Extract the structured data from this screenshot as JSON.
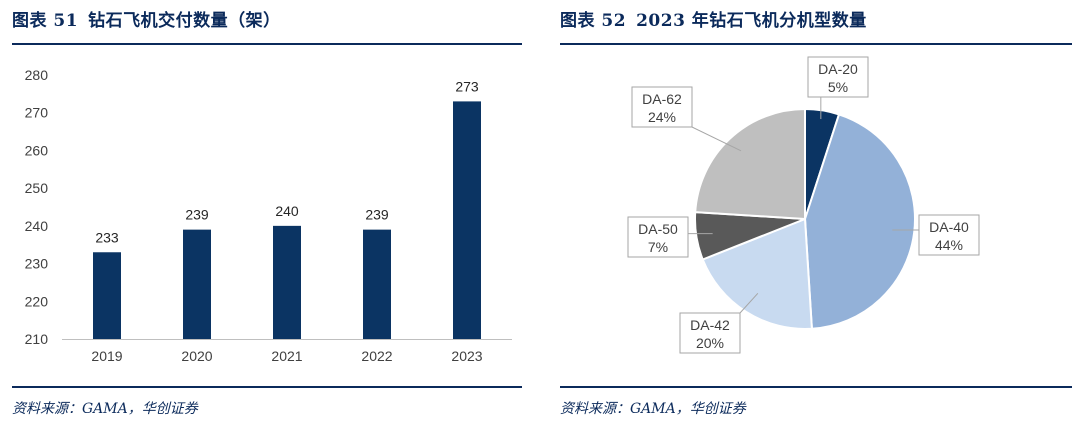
{
  "charts": {
    "left": {
      "fig_label": "图表 51",
      "title": "钻石飞机交付数量（架）",
      "source": "资料来源：GAMA，华创证券"
    },
    "right": {
      "fig_label": "图表 52",
      "title": "2023 年钻石飞机分机型数量",
      "source": "资料来源：GAMA，华创证券"
    }
  },
  "colors": {
    "title": "#0b2a5b",
    "bar": "#0b3463",
    "axis_text": "#404040",
    "pie": [
      "#0b3463",
      "#93b1d8",
      "#c8daf0",
      "#595959",
      "#bfbfbf"
    ]
  },
  "chart_data": [
    {
      "type": "bar",
      "title": "钻石飞机交付数量（架）",
      "categories": [
        "2019",
        "2020",
        "2021",
        "2022",
        "2023"
      ],
      "values": [
        233,
        239,
        240,
        239,
        273
      ],
      "ylim": [
        210,
        280
      ],
      "yticks": [
        "210",
        "220",
        "230",
        "240",
        "250",
        "260",
        "270",
        "280"
      ],
      "data_labels": [
        "233",
        "239",
        "240",
        "239",
        "273"
      ],
      "grid": false
    },
    {
      "type": "pie",
      "title": "2023 年钻石飞机分机型数量",
      "slices": [
        {
          "name": "DA-20",
          "value": 5,
          "label": "5%"
        },
        {
          "name": "DA-40",
          "value": 44,
          "label": "44%"
        },
        {
          "name": "DA-42",
          "value": 20,
          "label": "20%"
        },
        {
          "name": "DA-50",
          "value": 7,
          "label": "7%"
        },
        {
          "name": "DA-62",
          "value": 24,
          "label": "24%"
        }
      ]
    }
  ]
}
